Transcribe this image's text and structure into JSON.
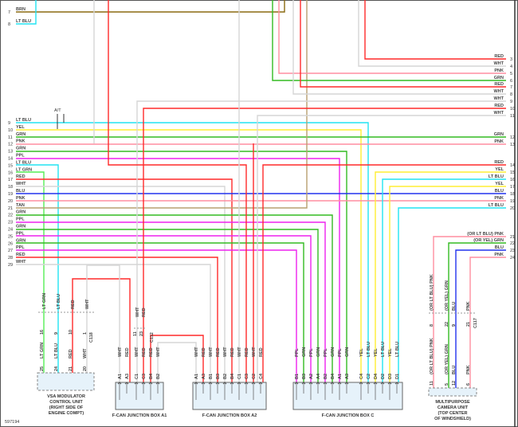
{
  "diagram_id": "597194",
  "colors": {
    "RED": "#ff2a2a",
    "WHT": "#d6d6d6",
    "PNK": "#ff8ea0",
    "GRN": "#33bb22",
    "LT BLU": "#22e4f2",
    "YEL": "#ffee33",
    "BLU": "#2233ee",
    "PPL": "#ee22ee",
    "TAN": "#b8a070",
    "BRN": "#8a6a10",
    "LT GRN": "#55ee55"
  },
  "at_label": "A/T",
  "left_rows": [
    {
      "n": "7",
      "c": "BRN"
    },
    {
      "n": "8",
      "c": "LT BLU"
    },
    {
      "n": "9",
      "c": "LT BLU"
    },
    {
      "n": "10",
      "c": "YEL"
    },
    {
      "n": "11",
      "c": "GRN"
    },
    {
      "n": "12",
      "c": "PNK"
    },
    {
      "n": "13",
      "c": "GRN"
    },
    {
      "n": "14",
      "c": "PPL"
    },
    {
      "n": "15",
      "c": "LT BLU"
    },
    {
      "n": "16",
      "c": "LT GRN"
    },
    {
      "n": "17",
      "c": "RED"
    },
    {
      "n": "18",
      "c": "WHT"
    },
    {
      "n": "19",
      "c": "BLU"
    },
    {
      "n": "20",
      "c": "PNK"
    },
    {
      "n": "21",
      "c": "TAN"
    },
    {
      "n": "22",
      "c": "GRN"
    },
    {
      "n": "23",
      "c": "PPL"
    },
    {
      "n": "24",
      "c": "GRN"
    },
    {
      "n": "25",
      "c": "PPL"
    },
    {
      "n": "26",
      "c": "GRN"
    },
    {
      "n": "27",
      "c": "PPL"
    },
    {
      "n": "28",
      "c": "RED"
    },
    {
      "n": "29",
      "c": "WHT"
    }
  ],
  "right_rows": [
    {
      "n": "3",
      "c": "RED"
    },
    {
      "n": "4",
      "c": "WHT"
    },
    {
      "n": "5",
      "c": "PNK"
    },
    {
      "n": "6",
      "c": "GRN"
    },
    {
      "n": "7",
      "c": "RED"
    },
    {
      "n": "8",
      "c": "WHT"
    },
    {
      "n": "9",
      "c": "WHT"
    },
    {
      "n": "10",
      "c": "RED"
    },
    {
      "n": "11",
      "c": "WHT"
    },
    {
      "n": "12",
      "c": "GRN"
    },
    {
      "n": "13",
      "c": "PNK"
    },
    {
      "n": "14",
      "c": "RED"
    },
    {
      "n": "15",
      "c": "YEL"
    },
    {
      "n": "16",
      "c": "LT BLU"
    },
    {
      "n": "17",
      "c": "YEL"
    },
    {
      "n": "18",
      "c": "BLU"
    },
    {
      "n": "19",
      "c": "PNK"
    },
    {
      "n": "20",
      "c": "LT BLU"
    },
    {
      "n": "21",
      "c": "PNK",
      "alt": "(OR LT BLU)"
    },
    {
      "n": "22",
      "c": "GRN",
      "alt": "(OR YEL)"
    },
    {
      "n": "23",
      "c": "BLU"
    },
    {
      "n": "24",
      "c": "PNK"
    }
  ],
  "vsa": {
    "title": [
      "VSA MODULATOR",
      "CONTROL UNIT",
      "(RIGHT SIDE OF",
      "ENGINE COMPT)"
    ],
    "connector": "C118",
    "top_pins": [
      {
        "c": "LT GRN",
        "p": "16"
      },
      {
        "c": "LT BLU",
        "p": "9"
      },
      {
        "c": "RED",
        "p": "10"
      },
      {
        "c": "WHT",
        "p": "1"
      }
    ],
    "bottom_pins": [
      {
        "c": "LT GRN",
        "p": "25"
      },
      {
        "c": "LT BLU",
        "p": "24"
      },
      {
        "c": "RED",
        "p": "21"
      },
      {
        "c": "WHT",
        "p": "20"
      }
    ]
  },
  "box_a1": {
    "title": "F-CAN JUNCTION BOX A1",
    "connector": "C112",
    "top_pins": [
      {
        "c": "WHT",
        "p": "11"
      },
      {
        "c": "RED",
        "p": "23"
      }
    ],
    "pins": [
      {
        "c": "WHT",
        "p": "A1"
      },
      {
        "c": "RED",
        "p": "A3"
      },
      {
        "c": "WHT",
        "p": "C1"
      },
      {
        "c": "RED",
        "p": "C3"
      },
      {
        "c": "RED",
        "p": "B4"
      },
      {
        "c": "WHT",
        "p": "B2"
      }
    ]
  },
  "box_a2": {
    "title": "F-CAN JUNCTION BOX A2",
    "pins": [
      {
        "c": "WHT",
        "p": "A1"
      },
      {
        "c": "RED",
        "p": "A3"
      },
      {
        "c": "WHT",
        "p": "B1"
      },
      {
        "c": "RED",
        "p": "B3"
      },
      {
        "c": "WHT",
        "p": "B2"
      },
      {
        "c": "RED",
        "p": "B4"
      },
      {
        "c": "WHT",
        "p": "C1"
      },
      {
        "c": "RED",
        "p": "C3"
      },
      {
        "c": "WHT",
        "p": "C2"
      },
      {
        "c": "RED",
        "p": "C4"
      }
    ]
  },
  "box_c": {
    "title": "F-CAN JUNCTION BOX C",
    "pins": [
      {
        "c": "PPL",
        "p": "B1"
      },
      {
        "c": "GRN",
        "p": "B3"
      },
      {
        "c": "PPL",
        "p": "A2"
      },
      {
        "c": "GRN",
        "p": "A4"
      },
      {
        "c": "PPL",
        "p": "B2"
      },
      {
        "c": "GRN",
        "p": "B4"
      },
      {
        "c": "PPL",
        "p": "A1"
      },
      {
        "c": "GRN",
        "p": "A3"
      },
      {
        "c": "YEL",
        "p": "C4"
      },
      {
        "c": "LT BLU",
        "p": "C2"
      },
      {
        "c": "YEL",
        "p": "D4"
      },
      {
        "c": "LT BLU",
        "p": "D2"
      },
      {
        "c": "YEL",
        "p": "D3"
      },
      {
        "c": "LT BLU",
        "p": "D1"
      }
    ]
  },
  "camera": {
    "title": [
      "MULTIPURPOSE",
      "CAMERA UNIT",
      "(TOP CENTER",
      "OF WINDSHIELD)"
    ],
    "connector": "C117",
    "top_pins": [
      {
        "c": "PNK",
        "alt": "(OR LT BLU)",
        "p": "8"
      },
      {
        "c": "GRN",
        "alt": "(OR YEL)",
        "p": "22"
      },
      {
        "c": "BLU",
        "p": "9"
      },
      {
        "c": "PNK",
        "p": "21"
      }
    ],
    "bottom_pins": [
      {
        "c": "PNK",
        "alt": "(OR LT BLU)",
        "p": "11"
      },
      {
        "c": "GRN",
        "alt": "(OR YEL)",
        "p": "5"
      },
      {
        "c": "BLU",
        "p": "12"
      },
      {
        "c": "PNK",
        "p": "6"
      }
    ]
  }
}
